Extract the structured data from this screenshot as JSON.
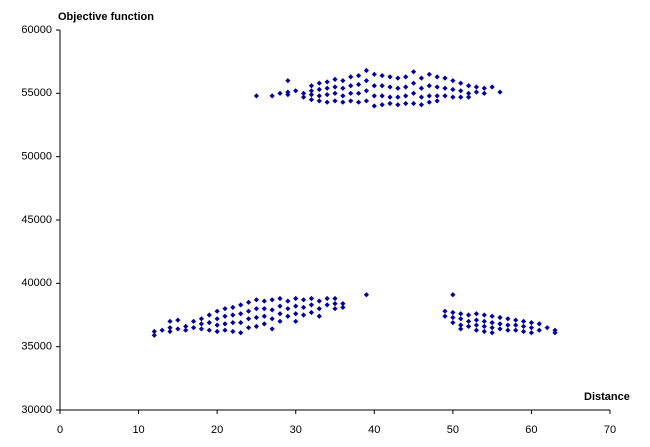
{
  "chart_data": {
    "type": "scatter",
    "title": "Objective function",
    "x_label": "Distance",
    "color": "#0000a0",
    "grid": false,
    "xlim": [
      0,
      70
    ],
    "xticks": [
      0,
      10,
      20,
      30,
      40,
      50,
      60,
      70
    ],
    "ylim": [
      30000,
      60000
    ],
    "yticks": [
      30000,
      35000,
      40000,
      45000,
      50000,
      55000,
      60000
    ],
    "x": [
      25,
      27,
      28,
      29,
      29,
      29,
      30,
      31,
      31,
      32,
      32,
      32,
      32,
      33,
      33,
      33,
      33,
      34,
      34,
      34,
      34,
      35,
      35,
      35,
      35,
      36,
      36,
      36,
      36,
      37,
      37,
      37,
      37,
      38,
      38,
      38,
      38,
      39,
      39,
      39,
      39,
      40,
      40,
      40,
      40,
      41,
      41,
      41,
      41,
      42,
      42,
      42,
      42,
      43,
      43,
      43,
      43,
      44,
      44,
      44,
      44,
      45,
      45,
      45,
      45,
      46,
      46,
      46,
      46,
      47,
      47,
      47,
      47,
      48,
      48,
      48,
      48,
      49,
      49,
      49,
      50,
      50,
      50,
      51,
      51,
      51,
      52,
      52,
      52,
      53,
      53,
      54,
      54,
      55,
      56,
      12,
      12,
      13,
      14,
      14,
      14,
      15,
      15,
      16,
      16,
      17,
      17,
      18,
      18,
      18,
      19,
      19,
      19,
      20,
      20,
      20,
      20,
      21,
      21,
      21,
      21,
      22,
      22,
      22,
      22,
      23,
      23,
      23,
      23,
      24,
      24,
      24,
      24,
      25,
      25,
      25,
      25,
      26,
      26,
      26,
      26,
      27,
      27,
      27,
      27,
      28,
      28,
      28,
      28,
      29,
      29,
      29,
      30,
      30,
      30,
      30,
      31,
      31,
      31,
      32,
      32,
      32,
      33,
      33,
      33,
      34,
      34,
      35,
      35,
      35,
      36,
      36,
      39,
      50,
      49,
      49,
      50,
      50,
      50,
      51,
      51,
      51,
      51,
      52,
      52,
      52,
      53,
      53,
      53,
      53,
      54,
      54,
      54,
      54,
      55,
      55,
      55,
      55,
      56,
      56,
      56,
      57,
      57,
      57,
      58,
      58,
      58,
      59,
      59,
      59,
      60,
      60,
      60,
      61,
      61,
      62,
      63,
      63
    ],
    "values": [
      54800,
      54800,
      55000,
      56000,
      55100,
      54900,
      55200,
      55000,
      54700,
      55600,
      55200,
      54900,
      54500,
      55800,
      55300,
      54800,
      54400,
      55900,
      55400,
      54900,
      54300,
      56100,
      55500,
      55000,
      54400,
      56000,
      55400,
      54800,
      54300,
      56300,
      55600,
      55000,
      54400,
      56400,
      55700,
      55000,
      54300,
      56800,
      56000,
      55200,
      54400,
      56500,
      55600,
      54800,
      54000,
      56400,
      55600,
      54800,
      54100,
      56300,
      55500,
      54700,
      54200,
      56200,
      55400,
      54700,
      54100,
      56300,
      55500,
      54800,
      54200,
      56700,
      55800,
      55000,
      54200,
      56200,
      55400,
      54700,
      54100,
      56500,
      55600,
      54800,
      54300,
      56300,
      55500,
      54800,
      54400,
      56200,
      55400,
      54800,
      56000,
      55300,
      54700,
      55800,
      55200,
      54700,
      55600,
      55000,
      54700,
      55500,
      55100,
      55400,
      55000,
      55500,
      55100,
      36200,
      35900,
      36300,
      37000,
      36500,
      36200,
      37100,
      36400,
      36600,
      36300,
      37000,
      36500,
      37200,
      36800,
      36400,
      37500,
      36900,
      36300,
      37800,
      37200,
      36700,
      36200,
      38000,
      37400,
      36800,
      36300,
      38100,
      37500,
      36900,
      36200,
      38300,
      37600,
      36900,
      36100,
      38500,
      37800,
      37200,
      36500,
      38700,
      38000,
      37300,
      36600,
      38600,
      38000,
      37400,
      36800,
      38700,
      37900,
      37200,
      36400,
      38800,
      38200,
      37600,
      37000,
      38600,
      38000,
      37400,
      38800,
      38200,
      37600,
      37000,
      38700,
      38100,
      37500,
      38800,
      38300,
      37700,
      38600,
      38000,
      37400,
      38800,
      38300,
      38800,
      38400,
      38000,
      38400,
      38100,
      39100,
      39100,
      37800,
      37400,
      37700,
      37300,
      36900,
      37600,
      37200,
      36700,
      36400,
      37500,
      37000,
      36600,
      37600,
      37100,
      36700,
      36300,
      37500,
      37000,
      36600,
      36200,
      37400,
      36900,
      36500,
      36100,
      37300,
      36800,
      36400,
      37200,
      36700,
      36300,
      37100,
      36700,
      36300,
      37000,
      36600,
      36200,
      36900,
      36500,
      36100,
      36800,
      36300,
      36500,
      36300,
      36100
    ]
  }
}
